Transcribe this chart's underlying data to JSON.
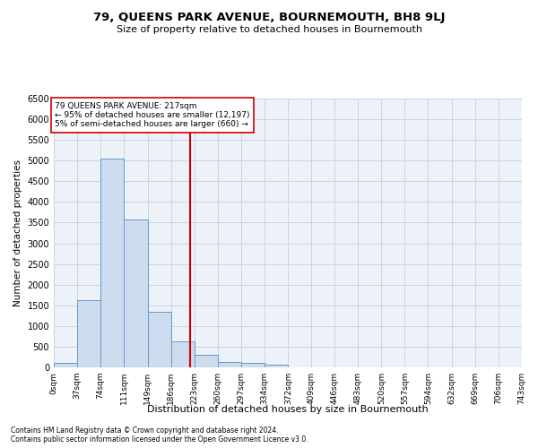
{
  "title": "79, QUEENS PARK AVENUE, BOURNEMOUTH, BH8 9LJ",
  "subtitle": "Size of property relative to detached houses in Bournemouth",
  "xlabel": "Distribution of detached houses by size in Bournemouth",
  "ylabel": "Number of detached properties",
  "footnote1": "Contains HM Land Registry data © Crown copyright and database right 2024.",
  "footnote2": "Contains public sector information licensed under the Open Government Licence v3.0.",
  "property_line_x": 217,
  "annotation_line1": "79 QUEENS PARK AVENUE: 217sqm",
  "annotation_line2": "← 95% of detached houses are smaller (12,197)",
  "annotation_line3": "5% of semi-detached houses are larger (660) →",
  "bin_edges": [
    0,
    37,
    74,
    111,
    149,
    186,
    223,
    260,
    297,
    334,
    372,
    409,
    446,
    483,
    520,
    557,
    594,
    632,
    669,
    706,
    743
  ],
  "bin_labels": [
    "0sqm",
    "37sqm",
    "74sqm",
    "111sqm",
    "149sqm",
    "186sqm",
    "223sqm",
    "260sqm",
    "297sqm",
    "334sqm",
    "372sqm",
    "409sqm",
    "446sqm",
    "483sqm",
    "520sqm",
    "557sqm",
    "594sqm",
    "632sqm",
    "669sqm",
    "706sqm",
    "743sqm"
  ],
  "counts": [
    100,
    1620,
    5050,
    3580,
    1350,
    620,
    295,
    130,
    110,
    70,
    10,
    0,
    0,
    0,
    0,
    0,
    0,
    0,
    0,
    0
  ],
  "bar_color": "#ccdcee",
  "bar_edge_color": "#6699cc",
  "vline_color": "#cc0000",
  "annotation_box_edge": "#cc0000",
  "grid_color": "#c8d4e4",
  "background_color": "#edf2f9",
  "ylim": [
    0,
    6500
  ],
  "yticks": [
    0,
    500,
    1000,
    1500,
    2000,
    2500,
    3000,
    3500,
    4000,
    4500,
    5000,
    5500,
    6000,
    6500
  ]
}
